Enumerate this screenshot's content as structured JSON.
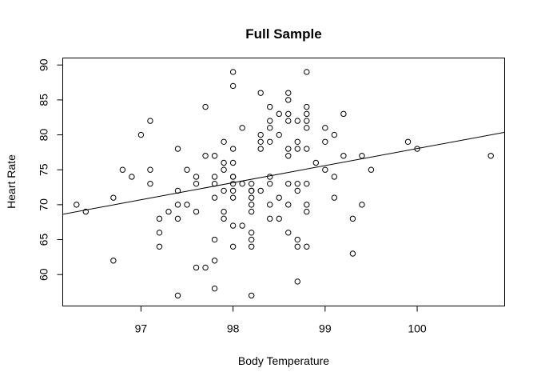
{
  "chart_data": {
    "type": "scatter",
    "title": "Full Sample",
    "xlabel": "Body Temperature",
    "ylabel": "Heart Rate",
    "xlim": [
      96.15,
      100.95
    ],
    "ylim": [
      55.5,
      91
    ],
    "xticks": [
      97,
      98,
      99,
      100
    ],
    "yticks": [
      60,
      65,
      70,
      75,
      80,
      85,
      90
    ],
    "xtick_labels": [
      "97",
      "98",
      "99",
      "100"
    ],
    "ytick_labels": [
      "60",
      "65",
      "70",
      "75",
      "80",
      "85",
      "90"
    ],
    "grid": false,
    "legend": "none",
    "series": [
      {
        "x": [
          96.3,
          96.4,
          96.7,
          96.7,
          96.8,
          96.9,
          97.0,
          97.1,
          97.1,
          97.1,
          97.2,
          97.2,
          97.2,
          97.3,
          97.4,
          97.4,
          97.4,
          97.4,
          97.4,
          97.5,
          97.5,
          97.6,
          97.6,
          97.6,
          97.6,
          97.7,
          97.7,
          97.7,
          97.8,
          97.8,
          97.8,
          97.8,
          97.8,
          97.8,
          97.8,
          97.9,
          97.9,
          97.9,
          97.9,
          97.9,
          97.9,
          98.0,
          98.0,
          98.0,
          98.0,
          98.0,
          98.0,
          98.0,
          98.0,
          98.0,
          98.0,
          98.0,
          98.1,
          98.1,
          98.1,
          98.2,
          98.2,
          98.2,
          98.2,
          98.2,
          98.2,
          98.2,
          98.2,
          98.2,
          98.2,
          98.3,
          98.3,
          98.3,
          98.3,
          98.3,
          98.4,
          98.4,
          98.4,
          98.4,
          98.4,
          98.4,
          98.4,
          98.4,
          98.5,
          98.5,
          98.5,
          98.5,
          98.6,
          98.6,
          98.6,
          98.6,
          98.6,
          98.6,
          98.6,
          98.6,
          98.6,
          98.7,
          98.7,
          98.7,
          98.7,
          98.7,
          98.7,
          98.7,
          98.7,
          98.8,
          98.8,
          98.8,
          98.8,
          98.8,
          98.8,
          98.8,
          98.8,
          98.8,
          98.8,
          98.9,
          99.0,
          99.0,
          99.0,
          99.1,
          99.1,
          99.1,
          99.2,
          99.2,
          99.3,
          99.3,
          99.4,
          99.4,
          99.5,
          99.9,
          100.0,
          100.8
        ],
        "y": [
          70,
          69,
          71,
          62,
          75,
          74,
          80,
          82,
          75,
          73,
          68,
          66,
          64,
          69,
          78,
          72,
          70,
          68,
          57,
          75,
          70,
          74,
          73,
          69,
          61,
          84,
          77,
          61,
          77,
          74,
          73,
          71,
          65,
          62,
          58,
          79,
          76,
          72,
          69,
          68,
          75,
          89,
          87,
          78,
          76,
          74,
          73,
          71,
          67,
          64,
          72,
          74,
          81,
          73,
          67,
          73,
          72,
          71,
          70,
          69,
          66,
          65,
          64,
          57,
          72,
          86,
          80,
          79,
          78,
          72,
          84,
          82,
          81,
          79,
          74,
          73,
          70,
          68,
          83,
          80,
          71,
          68,
          86,
          85,
          83,
          82,
          78,
          77,
          73,
          70,
          66,
          82,
          79,
          78,
          73,
          72,
          65,
          64,
          59,
          89,
          84,
          83,
          81,
          78,
          73,
          70,
          69,
          64,
          82,
          76,
          81,
          79,
          75,
          80,
          74,
          71,
          83,
          77,
          68,
          63,
          77,
          70,
          75,
          79,
          78,
          77
        ]
      }
    ],
    "fit_line": {
      "intercept": -166.2847,
      "slope": 2.443238
    }
  }
}
